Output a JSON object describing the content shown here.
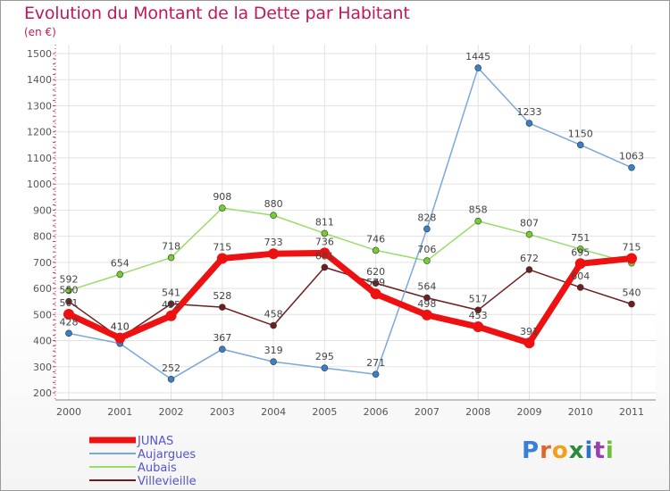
{
  "title": "Evolution du Montant de la Dette par Habitant",
  "subtitle": "(en €)",
  "logo": {
    "text": "Proxiti",
    "letters": [
      "P",
      "r",
      "o",
      "x",
      "i",
      "t",
      "i"
    ],
    "colors": [
      "#3a7fd6",
      "#e0672a",
      "#f2a01c",
      "#2a8b3f",
      "#2f6fcf",
      "#9a3fb0",
      "#6abf3b"
    ]
  },
  "chart_data": {
    "type": "line",
    "x": [
      "2000",
      "2001",
      "2002",
      "2003",
      "2004",
      "2005",
      "2006",
      "2007",
      "2008",
      "2009",
      "2010",
      "2011"
    ],
    "ylim": [
      200,
      1500
    ],
    "yticks": [
      "200",
      "300",
      "400",
      "500",
      "600",
      "700",
      "800",
      "900",
      "1000",
      "1100",
      "1200",
      "1300",
      "1400",
      "1500"
    ],
    "grid": true,
    "legend_position": "bottom-left",
    "series": [
      {
        "name": "Villevieille",
        "color": "#6e1e1e",
        "width": 1.5,
        "marker_color": "#6e1e1e",
        "values": [
          550,
          410,
          541,
          528,
          458,
          681,
          620,
          564,
          517,
          672,
          604,
          540
        ],
        "labels": [
          "550",
          "410",
          "541",
          "528",
          "458",
          "681",
          "620",
          "564",
          "517",
          "672",
          "604",
          "540"
        ]
      },
      {
        "name": "Aubais",
        "color": "#99dd66",
        "width": 1.5,
        "marker_color": "#77cc33",
        "values": [
          592,
          654,
          718,
          908,
          880,
          811,
          746,
          706,
          858,
          807,
          751,
          697
        ],
        "labels": [
          "592",
          "654",
          "718",
          "908",
          "880",
          "811",
          "746",
          "706",
          "858",
          "807",
          "751",
          ""
        ]
      },
      {
        "name": "Aujargues",
        "color": "#7aa8d8",
        "width": 1.5,
        "marker_color": "#3a7fc8",
        "values": [
          428,
          389,
          252,
          367,
          319,
          295,
          271,
          828,
          1445,
          1233,
          1150,
          1063
        ],
        "labels": [
          "428",
          "",
          "252",
          "367",
          "319",
          "295",
          "271",
          "828",
          "1445",
          "1233",
          "1150",
          "1063"
        ]
      },
      {
        "name": "JUNAS",
        "color": "#ee1111",
        "width": 7,
        "marker_color": "#ee1111",
        "values": [
          501,
          410,
          495,
          715,
          733,
          736,
          579,
          498,
          453,
          391,
          695,
          715
        ],
        "labels": [
          "501",
          "410",
          "495",
          "715",
          "733",
          "736",
          "579",
          "498",
          "453",
          "391",
          "695",
          "715"
        ]
      }
    ]
  }
}
